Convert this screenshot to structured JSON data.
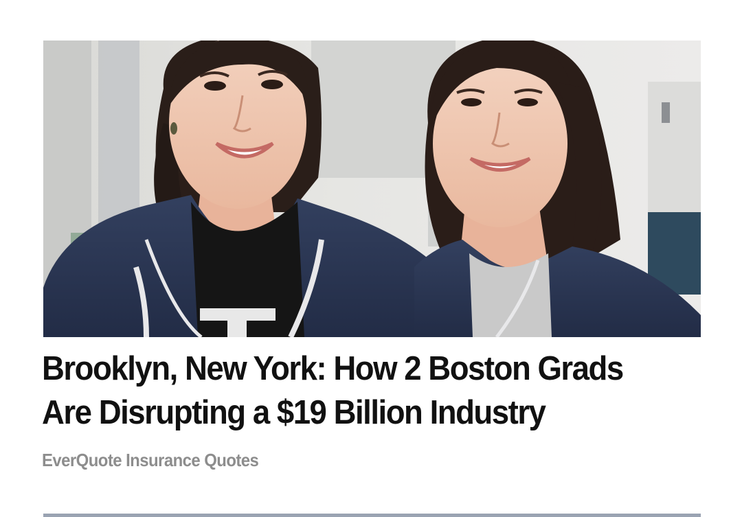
{
  "article": {
    "headline": "Brooklyn, New York: How 2 Boston Grads Are Disrupting a $19 Billion Industry",
    "source": "EverQuote Insurance Quotes"
  },
  "colors": {
    "headline": "#111111",
    "source": "#8d8d8d",
    "hoodie": "#2b3656",
    "background": "#ffffff"
  }
}
